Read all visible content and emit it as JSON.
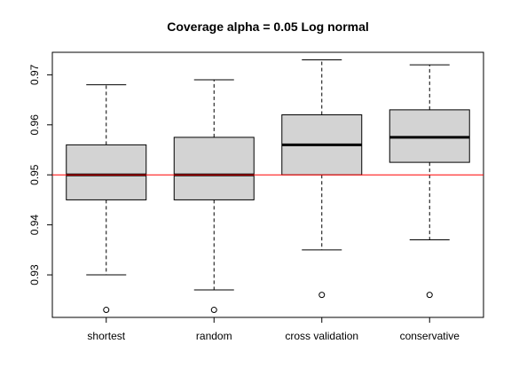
{
  "chart_data": {
    "type": "boxplot",
    "title": "Coverage alpha = 0.05 Log normal",
    "xlabel": "",
    "ylabel": "",
    "ylim": [
      0.9215,
      0.9745
    ],
    "yticks": [
      "0.93",
      "0.94",
      "0.95",
      "0.96",
      "0.97"
    ],
    "ytick_values": [
      0.93,
      0.94,
      0.95,
      0.96,
      0.97
    ],
    "categories": [
      "shortest",
      "random",
      "cross validation",
      "conservative"
    ],
    "boxes": [
      {
        "name": "shortest",
        "whisker_low": 0.93,
        "q1": 0.945,
        "median": 0.95,
        "q3": 0.956,
        "whisker_high": 0.968,
        "outliers": [
          0.923
        ]
      },
      {
        "name": "random",
        "whisker_low": 0.927,
        "q1": 0.945,
        "median": 0.95,
        "q3": 0.9575,
        "whisker_high": 0.969,
        "outliers": [
          0.923
        ]
      },
      {
        "name": "cross validation",
        "whisker_low": 0.935,
        "q1": 0.95,
        "median": 0.956,
        "q3": 0.962,
        "whisker_high": 0.973,
        "outliers": [
          0.926
        ]
      },
      {
        "name": "conservative",
        "whisker_low": 0.937,
        "q1": 0.9525,
        "median": 0.9575,
        "q3": 0.963,
        "whisker_high": 0.972,
        "outliers": [
          0.926
        ]
      }
    ],
    "reference_line": {
      "y": 0.95,
      "color": "#ff0000"
    },
    "box_fill": "#d3d3d3",
    "grid": false,
    "legend": "none"
  }
}
